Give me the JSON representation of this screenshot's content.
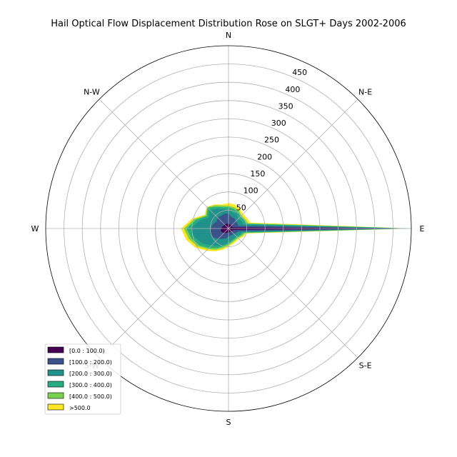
{
  "chart_data": {
    "type": "rose",
    "title": "Hail Optical Flow Displacement Distribution Rose on SLGT+ Days 2002-2006",
    "directions": [
      "E",
      "N-E",
      "N",
      "N-W",
      "W",
      "S-W",
      "S",
      "S-E"
    ],
    "direction_angles_deg": [
      0,
      45,
      90,
      135,
      180,
      225,
      270,
      315
    ],
    "r_ticks": [
      50,
      100,
      150,
      200,
      250,
      300,
      350,
      400,
      450
    ],
    "r_max": 500,
    "grid": true,
    "legend_position": "lower left",
    "bin_angles_deg": [
      0,
      15,
      30,
      45,
      60,
      75,
      90,
      105,
      120,
      135,
      150,
      165,
      180,
      195,
      210,
      225,
      240,
      255,
      270,
      285,
      300,
      315,
      330,
      345
    ],
    "series": [
      {
        "name": "[0.0 : 100.0)",
        "color": "#440154",
        "values": [
          468,
          12,
          12,
          10,
          12,
          12,
          12,
          14,
          14,
          16,
          15,
          18,
          20,
          22,
          20,
          17,
          14,
          12,
          10,
          10,
          10,
          10,
          12,
          14
        ]
      },
      {
        "name": "[100.0 : 200.0)",
        "color": "#3b528b",
        "values": [
          488,
          28,
          28,
          28,
          32,
          32,
          40,
          42,
          40,
          42,
          38,
          44,
          48,
          52,
          48,
          40,
          32,
          28,
          22,
          20,
          20,
          20,
          24,
          28
        ]
      },
      {
        "name": "[200.0 : 300.0)",
        "color": "#21918c",
        "values": [
          495,
          42,
          40,
          38,
          45,
          45,
          50,
          55,
          62,
          72,
          62,
          82,
          104,
          95,
          82,
          65,
          55,
          45,
          38,
          32,
          30,
          30,
          34,
          38
        ]
      },
      {
        "name": "[300.0 : 400.0)",
        "color": "#27ad81",
        "values": [
          498,
          50,
          48,
          46,
          52,
          55,
          58,
          60,
          68,
          80,
          68,
          92,
          115,
          105,
          92,
          75,
          62,
          50,
          42,
          36,
          34,
          34,
          38,
          44
        ]
      },
      {
        "name": "[400.0 : 500.0)",
        "color": "#7ad151",
        "values": [
          500,
          56,
          52,
          50,
          57,
          60,
          62,
          65,
          73,
          83,
          72,
          98,
          122,
          112,
          98,
          80,
          67,
          55,
          46,
          40,
          37,
          37,
          42,
          48
        ]
      },
      {
        "name": ">500.0",
        "color": "#fde725",
        "values": [
          500,
          62,
          58,
          56,
          62,
          68,
          70,
          68,
          76,
          84,
          75,
          104,
          130,
          120,
          105,
          86,
          72,
          60,
          50,
          44,
          41,
          40,
          46,
          52
        ]
      }
    ]
  }
}
